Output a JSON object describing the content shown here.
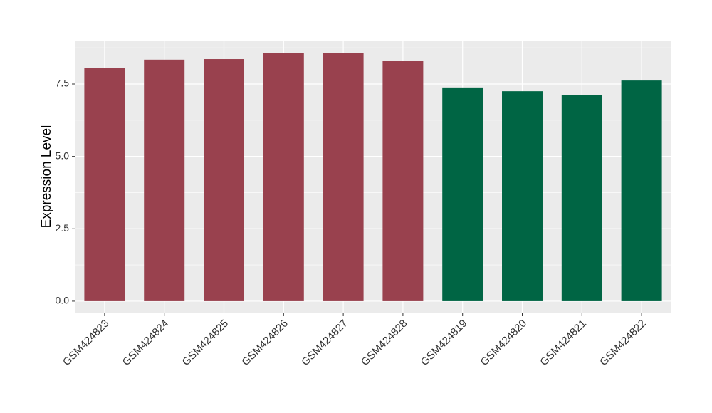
{
  "chart_data": {
    "type": "bar",
    "y_label": "Expression Level",
    "categories": [
      "GSM424823",
      "GSM424824",
      "GSM424825",
      "GSM424826",
      "GSM424827",
      "GSM424828",
      "GSM424819",
      "GSM424820",
      "GSM424821",
      "GSM424822"
    ],
    "values": [
      8.06,
      8.34,
      8.36,
      8.58,
      8.58,
      8.29,
      7.38,
      7.25,
      7.11,
      7.62
    ],
    "colors": [
      "#99414e",
      "#99414e",
      "#99414e",
      "#99414e",
      "#99414e",
      "#99414e",
      "#006544",
      "#006544",
      "#006544",
      "#006544"
    ],
    "ylim": [
      -0.42,
      9.0
    ],
    "yticks": [
      {
        "value": 0,
        "label": "0.0"
      },
      2.5,
      {
        "value": 5,
        "label": "5.0"
      },
      7.5
    ],
    "grid": true
  }
}
